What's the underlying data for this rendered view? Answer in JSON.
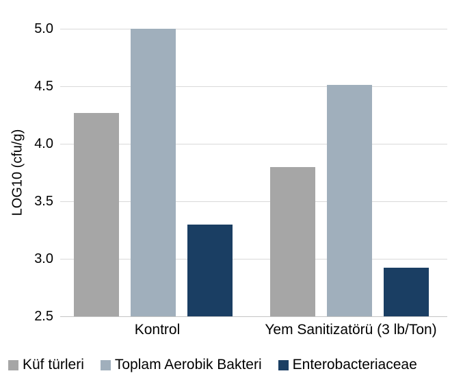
{
  "chart_data": {
    "type": "bar",
    "title": "",
    "categories": [
      "Kontrol",
      "Yem Sanitizatörü (3 lb/Ton)"
    ],
    "series": [
      {
        "name": "Küf türleri",
        "color": "#a6a6a6",
        "values": [
          4.27,
          3.8
        ]
      },
      {
        "name": "Toplam Aerobik Bakteri",
        "color": "#a0afbc",
        "values": [
          5.0,
          4.51
        ]
      },
      {
        "name": "Enterobacteriaceae",
        "color": "#1a3e63",
        "values": [
          3.3,
          2.92
        ]
      }
    ],
    "xlabel": "",
    "ylabel": "LOG10 (cfu/g)",
    "ylim": [
      2.5,
      5.0
    ],
    "ytick_step": 0.5,
    "yticks": [
      "5.0",
      "4.5",
      "4.0",
      "3.5",
      "3.0",
      "2.5"
    ],
    "grid": true,
    "legend_position": "bottom"
  }
}
